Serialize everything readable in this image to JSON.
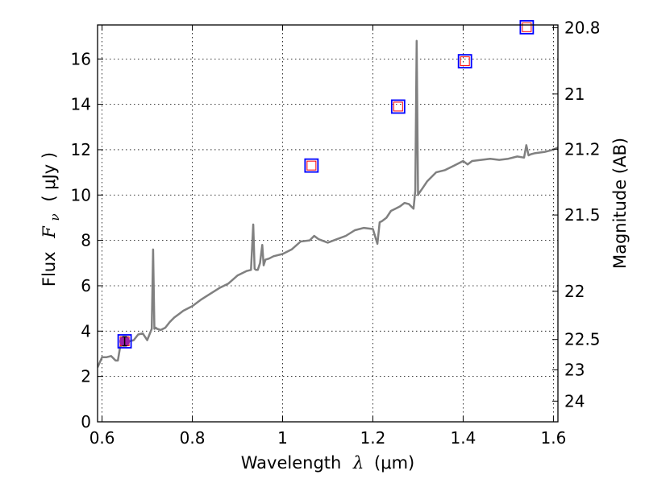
{
  "chart_data": {
    "type": "line",
    "xlabel": {
      "text": "Wavelength",
      "symbol": "λ",
      "unit": "(μm)"
    },
    "ylabel": {
      "text": "Flux",
      "symbol": "F",
      "subscript": "ν",
      "unit": "( μJy )"
    },
    "y2label": "Magnitude (AB)",
    "xlim": [
      0.59,
      1.61
    ],
    "ylim": [
      0,
      17.5
    ],
    "grid": true,
    "x_ticks": [
      0.6,
      0.8,
      1.0,
      1.2,
      1.4,
      1.6
    ],
    "x_tick_labels": [
      "0.6",
      "0.8",
      "1",
      "1.2",
      "1.4",
      "1.6"
    ],
    "y_ticks": [
      0,
      2,
      4,
      6,
      8,
      10,
      12,
      14,
      16
    ],
    "y_tick_labels": [
      "0",
      "2",
      "4",
      "6",
      "8",
      "10",
      "12",
      "14",
      "16"
    ],
    "y2_ticks": [
      {
        "value": 24,
        "label": "24"
      },
      {
        "value": 23,
        "label": "23"
      },
      {
        "value": 22.5,
        "label": "22.5"
      },
      {
        "value": 22,
        "label": "22"
      },
      {
        "value": 21.5,
        "label": "21.5"
      },
      {
        "value": 21.2,
        "label": "21.2"
      },
      {
        "value": 21,
        "label": "21"
      },
      {
        "value": 20.8,
        "label": "20.8"
      }
    ],
    "series": [
      {
        "style": "line",
        "color": "#808080",
        "x": [
          0.59,
          0.6,
          0.61,
          0.62,
          0.63,
          0.635,
          0.64,
          0.65,
          0.66,
          0.67,
          0.68,
          0.69,
          0.7,
          0.705,
          0.71,
          0.713,
          0.716,
          0.719,
          0.722,
          0.73,
          0.74,
          0.75,
          0.76,
          0.77,
          0.78,
          0.79,
          0.8,
          0.82,
          0.84,
          0.86,
          0.88,
          0.9,
          0.92,
          0.93,
          0.935,
          0.938,
          0.941,
          0.945,
          0.95,
          0.955,
          0.958,
          0.962,
          0.97,
          0.98,
          1.0,
          1.02,
          1.04,
          1.06,
          1.07,
          1.08,
          1.1,
          1.12,
          1.14,
          1.16,
          1.18,
          1.2,
          1.21,
          1.215,
          1.22,
          1.23,
          1.24,
          1.25,
          1.26,
          1.27,
          1.28,
          1.29,
          1.294,
          1.297,
          1.3,
          1.303,
          1.31,
          1.32,
          1.33,
          1.34,
          1.36,
          1.38,
          1.4,
          1.41,
          1.42,
          1.44,
          1.46,
          1.48,
          1.5,
          1.52,
          1.535,
          1.54,
          1.545,
          1.55,
          1.56,
          1.58,
          1.6,
          1.61
        ],
        "y": [
          2.4,
          2.85,
          2.85,
          2.9,
          2.7,
          2.7,
          3.3,
          3.5,
          3.55,
          3.6,
          3.85,
          3.9,
          3.6,
          3.85,
          4.1,
          7.6,
          4.1,
          4.15,
          4.1,
          4.05,
          4.15,
          4.4,
          4.6,
          4.75,
          4.9,
          5.0,
          5.1,
          5.4,
          5.65,
          5.9,
          6.1,
          6.45,
          6.65,
          6.7,
          8.7,
          6.75,
          6.7,
          6.7,
          7.0,
          7.8,
          6.9,
          7.15,
          7.2,
          7.3,
          7.4,
          7.6,
          7.95,
          8.0,
          8.2,
          8.05,
          7.9,
          8.05,
          8.2,
          8.45,
          8.55,
          8.5,
          7.85,
          8.8,
          8.85,
          9.0,
          9.3,
          9.4,
          9.5,
          9.65,
          9.6,
          9.4,
          10.2,
          16.8,
          10.0,
          10.1,
          10.3,
          10.6,
          10.8,
          11.0,
          11.1,
          11.3,
          11.5,
          11.35,
          11.5,
          11.55,
          11.6,
          11.55,
          11.6,
          11.7,
          11.65,
          12.2,
          11.75,
          11.8,
          11.85,
          11.9,
          12.0,
          12.1
        ]
      },
      {
        "style": "markers-square",
        "color": "#0000ff",
        "x": [
          0.65,
          1.064,
          1.256,
          1.404,
          1.541
        ],
        "y": [
          3.55,
          11.3,
          13.9,
          15.9,
          17.4
        ]
      },
      {
        "style": "markers-square-small",
        "color": "#ff0000",
        "x": [
          0.65,
          1.064,
          1.256,
          1.404,
          1.541
        ],
        "y": [
          3.55,
          11.3,
          13.9,
          15.9,
          17.4
        ]
      },
      {
        "style": "errorbar-point",
        "color": "#9b1fa6",
        "x": [
          0.65
        ],
        "y": [
          3.55
        ],
        "err": [
          0.2
        ]
      }
    ]
  }
}
